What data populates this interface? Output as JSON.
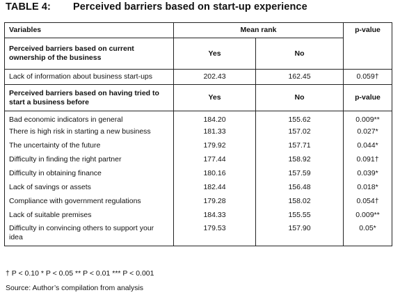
{
  "title": {
    "label": "TABLE 4:",
    "text": "Perceived barriers based on start-up experience"
  },
  "header": {
    "variables": "Variables",
    "mean_rank": "Mean rank",
    "p_value": "p-value"
  },
  "section1": {
    "heading": "Perceived barriers based on current ownership of the business",
    "yes": "Yes",
    "no": "No",
    "rows": [
      {
        "variable": "Lack of information about business start-ups",
        "yes": "202.43",
        "no": "162.45",
        "p": "0.059†"
      }
    ]
  },
  "section2": {
    "heading": "Perceived barriers based on having tried to start a business before",
    "yes": "Yes",
    "no": "No",
    "p_value": "p-value",
    "rows": [
      {
        "variable": "Bad economic indicators in general",
        "yes": "184.20",
        "no": "155.62",
        "p": "0.009**"
      },
      {
        "variable": "There is high risk in starting a new business",
        "yes": "181.33",
        "no": "157.02",
        "p": "0.027*"
      },
      {
        "variable": "The uncertainty of the future",
        "yes": "179.92",
        "no": "157.71",
        "p": "0.044*"
      },
      {
        "variable": "Difficulty in finding the right partner",
        "yes": "177.44",
        "no": "158.92",
        "p": "0.091†"
      },
      {
        "variable": "Difficulty in obtaining finance",
        "yes": "180.16",
        "no": "157.59",
        "p": "0.039*"
      },
      {
        "variable": "Lack of savings or assets",
        "yes": "182.44",
        "no": "156.48",
        "p": "0.018*"
      },
      {
        "variable": "Compliance with government regulations",
        "yes": "179.28",
        "no": "158.02",
        "p": "0.054†"
      },
      {
        "variable": "Lack of suitable premises",
        "yes": "184.33",
        "no": "155.55",
        "p": "0.009**"
      },
      {
        "variable": "Difficulty in convincing others to support your idea",
        "yes": "179.53",
        "no": "157.90",
        "p": "0.05*"
      }
    ]
  },
  "footnote": "† P < 0.10 * P < 0.05 ** P < 0.01 *** P < 0.001",
  "source": "Source: Author’s compilation from analysis"
}
